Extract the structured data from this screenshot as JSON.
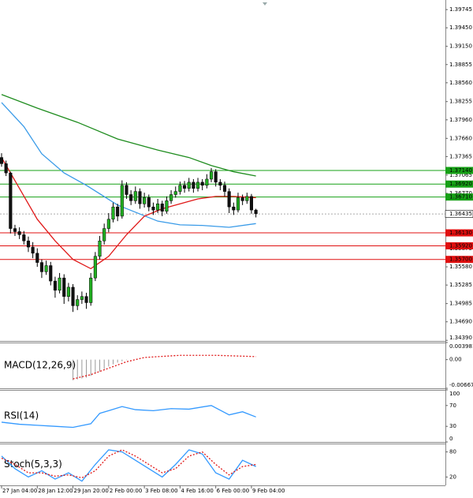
{
  "chart_data": [
    {
      "type": "candlestick",
      "categories": [
        "27 Jan 04:00",
        null,
        null,
        null,
        null,
        null,
        null,
        null,
        "28 Jan 12:00",
        null,
        null,
        null,
        null,
        null,
        null,
        null,
        "29 Jan 20:00",
        null,
        null,
        null,
        null,
        null,
        null,
        null,
        "2 Feb 00:00",
        null,
        null,
        null,
        null,
        null,
        null,
        null,
        "3 Feb 08:00",
        null,
        null,
        null,
        null,
        null,
        null,
        null,
        "4 Feb 16:00",
        null,
        null,
        null,
        null,
        null,
        null,
        null,
        "6 Feb 00:00",
        null,
        null,
        null,
        null,
        null,
        null,
        null,
        "9 Feb 04:00",
        null
      ],
      "open": [
        1.3735,
        1.3725,
        1.371,
        1.362,
        1.3615,
        1.361,
        1.36,
        1.359,
        1.358,
        1.3565,
        1.355,
        1.356,
        1.3535,
        1.352,
        1.354,
        1.351,
        1.3525,
        1.3495,
        1.3505,
        1.351,
        1.35,
        1.354,
        1.3575,
        1.36,
        1.362,
        1.3635,
        1.3655,
        1.364,
        1.369,
        1.3675,
        1.3665,
        1.368,
        1.366,
        1.367,
        1.3655,
        1.365,
        1.366,
        1.3648,
        1.3665,
        1.3675,
        1.368,
        1.369,
        1.3685,
        1.3695,
        1.3685,
        1.3695,
        1.369,
        1.37,
        1.3712,
        1.3695,
        1.369,
        1.368,
        1.3655,
        1.365,
        1.367,
        1.3665,
        1.3672,
        1.365
      ],
      "high": [
        1.3742,
        1.373,
        1.3712,
        1.3626,
        1.3622,
        1.3616,
        1.3607,
        1.3598,
        1.3588,
        1.357,
        1.3568,
        1.3566,
        1.3542,
        1.3548,
        1.3546,
        1.3532,
        1.353,
        1.3512,
        1.3518,
        1.3516,
        1.3548,
        1.3582,
        1.3608,
        1.3628,
        1.3645,
        1.3662,
        1.366,
        1.3698,
        1.3695,
        1.3682,
        1.3688,
        1.3685,
        1.3678,
        1.3675,
        1.3662,
        1.3668,
        1.3665,
        1.3672,
        1.3682,
        1.3688,
        1.3696,
        1.3697,
        1.3702,
        1.37,
        1.3702,
        1.37,
        1.3708,
        1.3718,
        1.3716,
        1.37,
        1.3696,
        1.3685,
        1.3662,
        1.3678,
        1.3675,
        1.3678,
        1.3676,
        1.3652
      ],
      "low": [
        1.372,
        1.3705,
        1.3612,
        1.3608,
        1.3603,
        1.3594,
        1.3582,
        1.3572,
        1.3558,
        1.354,
        1.3545,
        1.3528,
        1.3508,
        1.3515,
        1.3498,
        1.3502,
        1.3485,
        1.3488,
        1.3498,
        1.349,
        1.3495,
        1.3535,
        1.357,
        1.3594,
        1.3614,
        1.363,
        1.3632,
        1.3636,
        1.3668,
        1.3658,
        1.366,
        1.3652,
        1.3654,
        1.3648,
        1.3642,
        1.3645,
        1.364,
        1.3644,
        1.366,
        1.367,
        1.3675,
        1.3678,
        1.368,
        1.3678,
        1.368,
        1.3682,
        1.3685,
        1.3695,
        1.3688,
        1.3682,
        1.3672,
        1.3645,
        1.3642,
        1.3646,
        1.3658,
        1.366,
        1.3644,
        1.3638
      ],
      "close": [
        1.3725,
        1.371,
        1.362,
        1.3615,
        1.361,
        1.36,
        1.359,
        1.358,
        1.3565,
        1.355,
        1.356,
        1.3535,
        1.352,
        1.354,
        1.351,
        1.3525,
        1.3495,
        1.3505,
        1.351,
        1.35,
        1.354,
        1.3575,
        1.36,
        1.362,
        1.3635,
        1.3655,
        1.364,
        1.369,
        1.3675,
        1.3665,
        1.368,
        1.366,
        1.367,
        1.3655,
        1.365,
        1.366,
        1.3648,
        1.3665,
        1.3675,
        1.368,
        1.369,
        1.3685,
        1.3695,
        1.3685,
        1.3695,
        1.369,
        1.37,
        1.3712,
        1.3695,
        1.369,
        1.368,
        1.3655,
        1.365,
        1.367,
        1.3665,
        1.3672,
        1.365,
        1.3644
      ],
      "up_color": "#22b022",
      "down_color": "#111111",
      "ylim": [
        1.3438,
        1.399
      ],
      "yticks": [
        1.39745,
        {
          "value": 1.3945,
          "label": "1.39450"
        },
        {
          "value": 1.3915,
          "label": "1.39150"
        },
        1.38855,
        {
          "value": 1.3856,
          "label": "1.38560"
        },
        1.38255,
        {
          "value": 1.3796,
          "label": "1.37960"
        },
        {
          "value": 1.3766,
          "label": "1.37660"
        },
        1.37365,
        1.37065,
        {
          "value": 1.3677,
          "label": "1.36770"
        },
        1.35875,
        {
          "value": 1.3558,
          "label": "1.35580"
        },
        1.35285,
        1.34985,
        {
          "value": 1.3469,
          "label": "1.34690"
        },
        {
          "value": 1.3439,
          "label": "1.34390"
        }
      ],
      "overlays": [
        {
          "color": "#1e8c1e",
          "x": [
            0,
            8,
            17,
            26,
            35,
            42,
            47,
            52,
            57
          ],
          "values": [
            1.3837,
            1.3815,
            1.3792,
            1.3765,
            1.3747,
            1.3735,
            1.3722,
            1.3712,
            1.3705
          ]
        },
        {
          "color": "#3a9be8",
          "x": [
            0,
            5,
            9,
            14,
            19,
            26,
            35,
            40,
            45,
            51,
            57
          ],
          "values": [
            1.3824,
            1.3785,
            1.3741,
            1.371,
            1.369,
            1.3658,
            1.3632,
            1.3626,
            1.3625,
            1.3622,
            1.3628
          ]
        },
        {
          "color": "#e01818",
          "x": [
            0,
            4,
            8,
            12,
            16,
            20,
            24,
            28,
            32,
            36,
            40,
            44,
            48,
            52,
            57
          ],
          "values": [
            1.3735,
            1.3685,
            1.3635,
            1.36,
            1.357,
            1.3555,
            1.3575,
            1.361,
            1.364,
            1.3652,
            1.366,
            1.3668,
            1.3672,
            1.3672,
            1.367
          ]
        }
      ],
      "levels": [
        {
          "value": 1.3714,
          "label": "1.37140",
          "color": "#16a016"
        },
        {
          "value": 1.3692,
          "label": "1.36920",
          "color": "#16a016"
        },
        {
          "value": 1.3671,
          "label": "1.36710",
          "color": "#16a016"
        },
        {
          "value": 1.3613,
          "label": "1.36130",
          "color": "#e01010"
        },
        {
          "value": 1.3592,
          "label": "1.35920",
          "color": "#e01010"
        },
        {
          "value": 1.357,
          "label": "1.35700",
          "color": "#e01010"
        }
      ],
      "last_price": {
        "value": 1.36435,
        "label": "1.36435"
      }
    },
    {
      "type": "macd",
      "title": "MACD(12,26,9)",
      "ylim": [
        -0.006679,
        0.003981
      ],
      "yticks": [
        0.003981,
        {
          "value": 0,
          "label": "0.00"
        },
        -0.006679
      ],
      "histogram": {
        "color": "#9a9a9a",
        "x": [
          16,
          17,
          18,
          19,
          20,
          21,
          22,
          23,
          24,
          25,
          26,
          27,
          28
        ],
        "values": [
          -0.0048,
          -0.0046,
          -0.0044,
          -0.0042,
          -0.0038,
          -0.0033,
          -0.0028,
          -0.0022,
          -0.0016,
          -0.0011,
          -0.0007,
          -0.0004,
          -0.0001
        ]
      },
      "signal": {
        "color": "#e01818",
        "x": [
          16,
          20,
          24,
          28,
          32,
          40,
          48,
          57
        ],
        "values": [
          -0.0045,
          -0.0035,
          -0.002,
          -0.0005,
          0.0005,
          0.001,
          0.001,
          0.0007
        ]
      }
    },
    {
      "type": "line",
      "title": "RSI(14)",
      "ylim": [
        0,
        100
      ],
      "yticks": [
        100,
        70,
        30,
        0
      ],
      "series": [
        {
          "color": "#3399ff",
          "dash": false,
          "x": [
            0,
            4,
            8,
            12,
            16,
            20,
            22,
            24,
            27,
            30,
            34,
            38,
            42,
            47,
            51,
            54,
            57
          ],
          "values": [
            38,
            34,
            32,
            30,
            28,
            35,
            55,
            60,
            68,
            62,
            60,
            64,
            63,
            70,
            52,
            58,
            48
          ]
        }
      ]
    },
    {
      "type": "line",
      "title": "Stoch(5,3,3)",
      "ylim": [
        0,
        100
      ],
      "yticks": [
        80,
        20
      ],
      "series": [
        {
          "color": "#3399ff",
          "dash": false,
          "x": [
            0,
            3,
            6,
            9,
            12,
            15,
            18,
            21,
            24,
            27,
            30,
            33,
            36,
            39,
            42,
            45,
            48,
            51,
            54,
            57
          ],
          "values": [
            70,
            40,
            20,
            35,
            15,
            30,
            10,
            50,
            85,
            80,
            60,
            40,
            20,
            50,
            85,
            75,
            30,
            15,
            60,
            45
          ]
        },
        {
          "color": "#e01818",
          "dash": true,
          "x": [
            0,
            3,
            6,
            9,
            12,
            15,
            18,
            21,
            24,
            27,
            30,
            33,
            36,
            39,
            42,
            45,
            48,
            51,
            54,
            57
          ],
          "values": [
            65,
            50,
            30,
            30,
            22,
            25,
            18,
            35,
            70,
            85,
            70,
            50,
            30,
            40,
            70,
            80,
            50,
            25,
            45,
            50
          ]
        }
      ]
    }
  ]
}
